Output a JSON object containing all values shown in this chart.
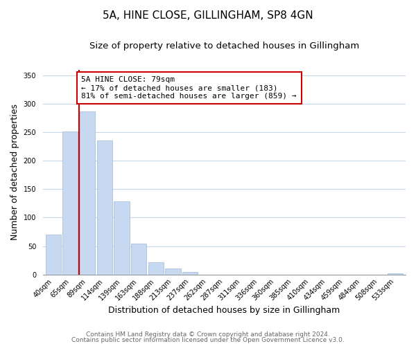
{
  "title": "5A, HINE CLOSE, GILLINGHAM, SP8 4GN",
  "subtitle": "Size of property relative to detached houses in Gillingham",
  "xlabel": "Distribution of detached houses by size in Gillingham",
  "ylabel": "Number of detached properties",
  "bar_labels": [
    "40sqm",
    "65sqm",
    "89sqm",
    "114sqm",
    "139sqm",
    "163sqm",
    "188sqm",
    "213sqm",
    "237sqm",
    "262sqm",
    "287sqm",
    "311sqm",
    "336sqm",
    "360sqm",
    "385sqm",
    "410sqm",
    "434sqm",
    "459sqm",
    "484sqm",
    "508sqm",
    "533sqm"
  ],
  "bar_values": [
    70,
    251,
    286,
    236,
    128,
    54,
    22,
    11,
    4,
    0,
    0,
    0,
    0,
    0,
    0,
    0,
    0,
    0,
    0,
    0,
    2
  ],
  "bar_color": "#c6d9f0",
  "bar_edge_color": "#a0b8d8",
  "marker_color": "#cc0000",
  "ylim": [
    0,
    360
  ],
  "yticks": [
    0,
    50,
    100,
    150,
    200,
    250,
    300,
    350
  ],
  "annotation_title": "5A HINE CLOSE: 79sqm",
  "annotation_line1": "← 17% of detached houses are smaller (183)",
  "annotation_line2": "81% of semi-detached houses are larger (859) →",
  "annotation_box_color": "#ffffff",
  "annotation_box_edge": "#cc0000",
  "footer1": "Contains HM Land Registry data © Crown copyright and database right 2024.",
  "footer2": "Contains public sector information licensed under the Open Government Licence v3.0.",
  "background_color": "#ffffff",
  "grid_color": "#c8d8ec",
  "title_fontsize": 11,
  "subtitle_fontsize": 9.5,
  "axis_label_fontsize": 9,
  "tick_fontsize": 7,
  "annotation_fontsize": 8,
  "footer_fontsize": 6.5
}
